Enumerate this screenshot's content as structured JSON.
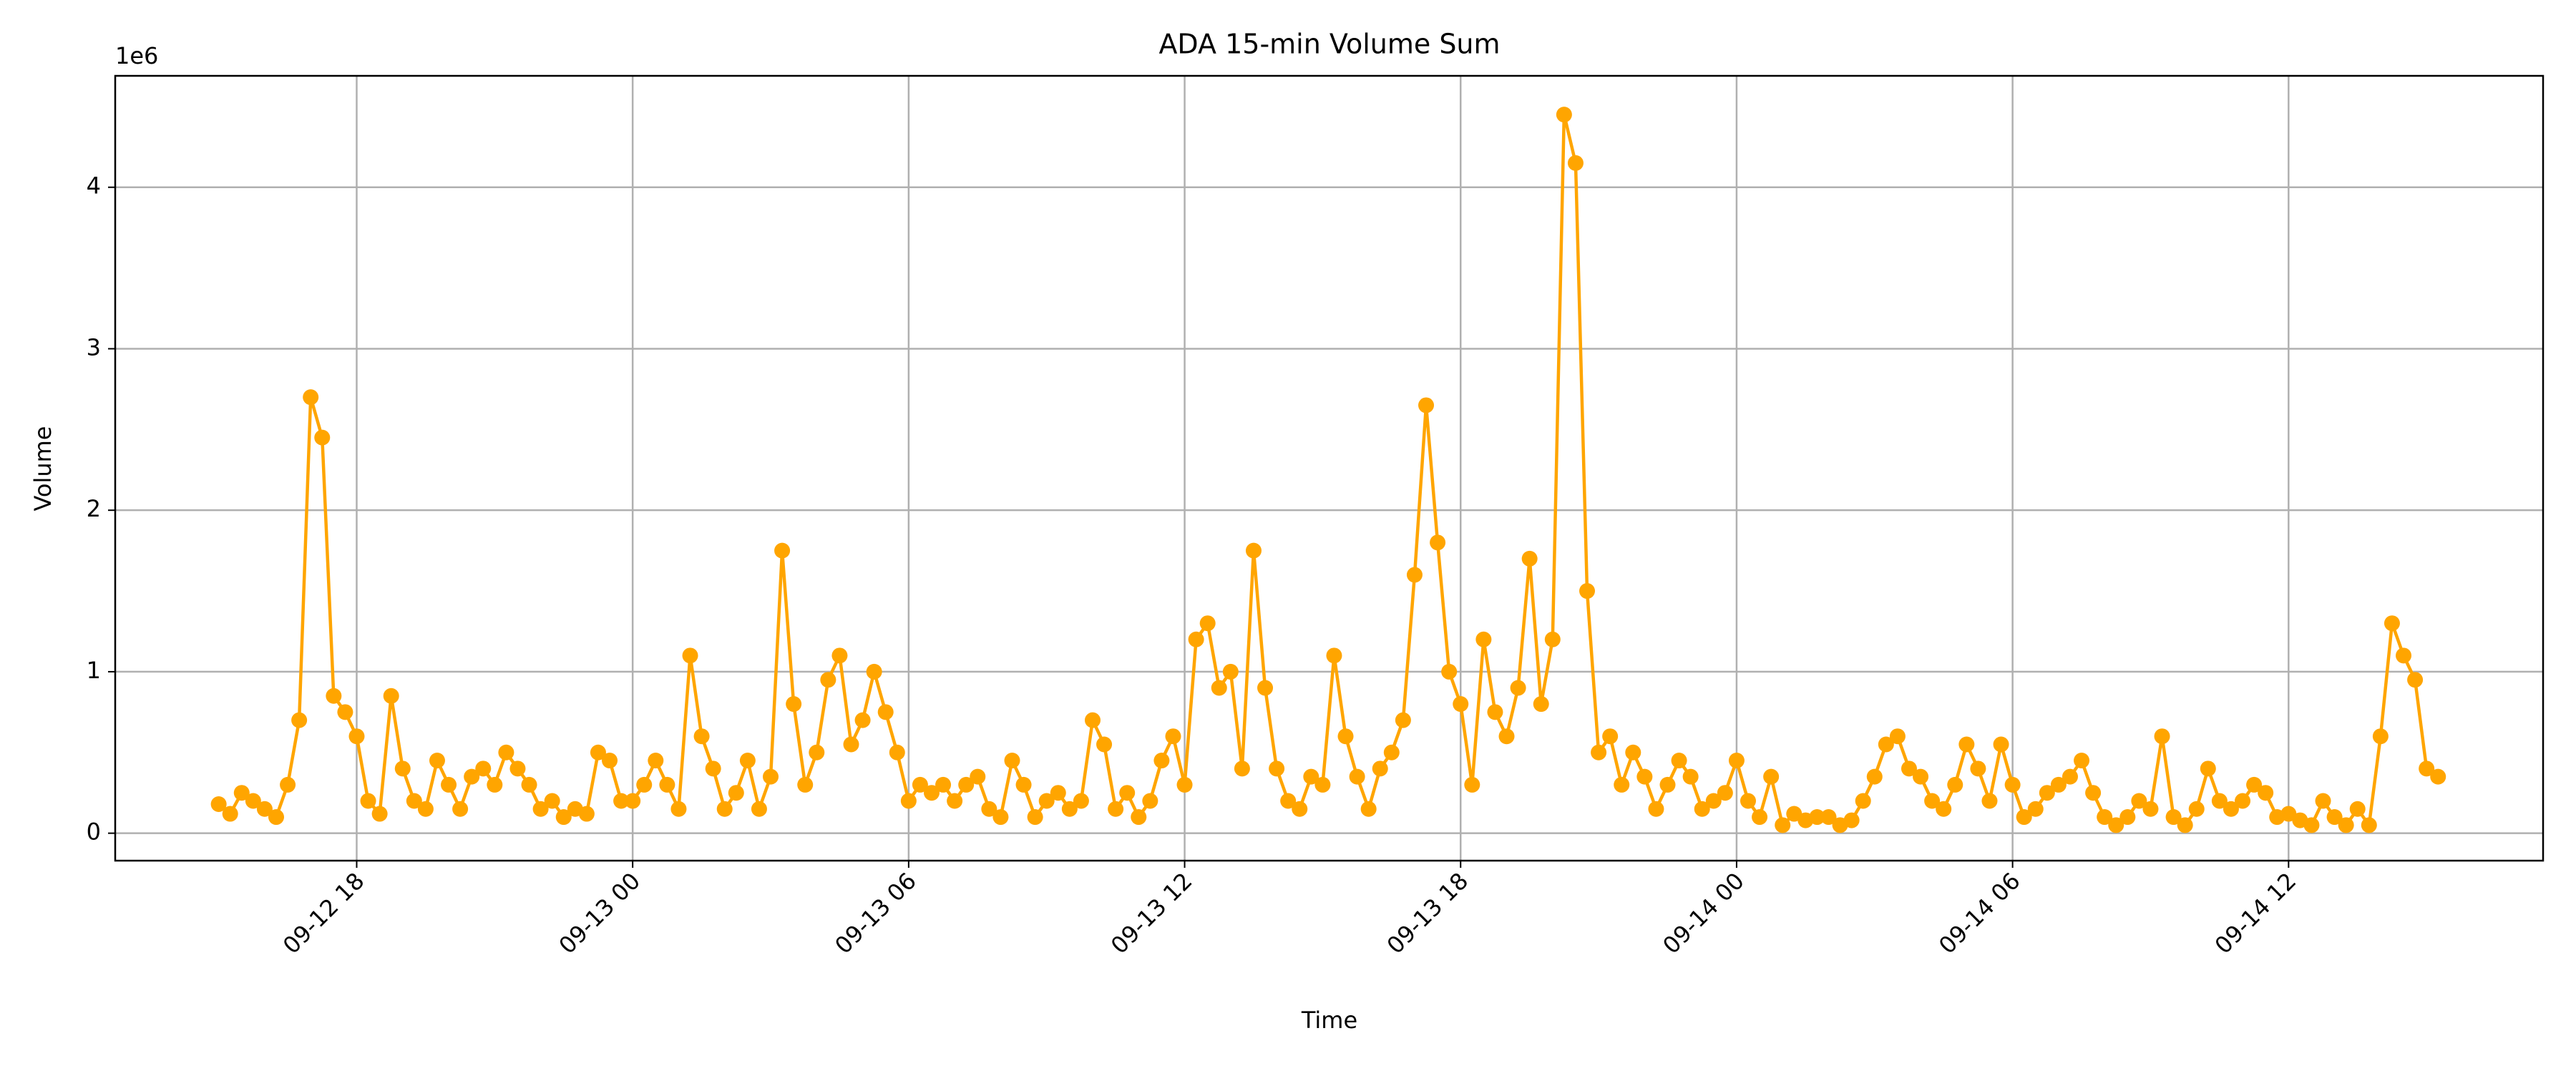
{
  "chart_data": {
    "type": "line",
    "title": "ADA 15-min Volume Sum",
    "x_label": "Time",
    "y_label": "Volume",
    "y_offset_label": "1e6",
    "x": [
      "09-12 15:00",
      "09-12 15:15",
      "09-12 15:30",
      "09-12 15:45",
      "09-12 16:00",
      "09-12 16:15",
      "09-12 16:30",
      "09-12 16:45",
      "09-12 17:00",
      "09-12 17:15",
      "09-12 17:30",
      "09-12 17:45",
      "09-12 18:00",
      "09-12 18:15",
      "09-12 18:30",
      "09-12 18:45",
      "09-12 19:00",
      "09-12 19:15",
      "09-12 19:30",
      "09-12 19:45",
      "09-12 20:00",
      "09-12 20:15",
      "09-12 20:30",
      "09-12 20:45",
      "09-12 21:00",
      "09-12 21:15",
      "09-12 21:30",
      "09-12 21:45",
      "09-12 22:00",
      "09-12 22:15",
      "09-12 22:30",
      "09-12 22:45",
      "09-12 23:00",
      "09-12 23:15",
      "09-12 23:30",
      "09-12 23:45",
      "09-13 00:00",
      "09-13 00:15",
      "09-13 00:30",
      "09-13 00:45",
      "09-13 01:00",
      "09-13 01:15",
      "09-13 01:30",
      "09-13 01:45",
      "09-13 02:00",
      "09-13 02:15",
      "09-13 02:30",
      "09-13 02:45",
      "09-13 03:00",
      "09-13 03:15",
      "09-13 03:30",
      "09-13 03:45",
      "09-13 04:00",
      "09-13 04:15",
      "09-13 04:30",
      "09-13 04:45",
      "09-13 05:00",
      "09-13 05:15",
      "09-13 05:30",
      "09-13 05:45",
      "09-13 06:00",
      "09-13 06:15",
      "09-13 06:30",
      "09-13 06:45",
      "09-13 07:00",
      "09-13 07:15",
      "09-13 07:30",
      "09-13 07:45",
      "09-13 08:00",
      "09-13 08:15",
      "09-13 08:30",
      "09-13 08:45",
      "09-13 09:00",
      "09-13 09:15",
      "09-13 09:30",
      "09-13 09:45",
      "09-13 10:00",
      "09-13 10:15",
      "09-13 10:30",
      "09-13 10:45",
      "09-13 11:00",
      "09-13 11:15",
      "09-13 11:30",
      "09-13 11:45",
      "09-13 12:00",
      "09-13 12:15",
      "09-13 12:30",
      "09-13 12:45",
      "09-13 13:00",
      "09-13 13:15",
      "09-13 13:30",
      "09-13 13:45",
      "09-13 14:00",
      "09-13 14:15",
      "09-13 14:30",
      "09-13 14:45",
      "09-13 15:00",
      "09-13 15:15",
      "09-13 15:30",
      "09-13 15:45",
      "09-13 16:00",
      "09-13 16:15",
      "09-13 16:30",
      "09-13 16:45",
      "09-13 17:00",
      "09-13 17:15",
      "09-13 17:30",
      "09-13 17:45",
      "09-13 18:00",
      "09-13 18:15",
      "09-13 18:30",
      "09-13 18:45",
      "09-13 19:00",
      "09-13 19:15",
      "09-13 19:30",
      "09-13 19:45",
      "09-13 20:00",
      "09-13 20:15",
      "09-13 20:30",
      "09-13 20:45",
      "09-13 21:00",
      "09-13 21:15",
      "09-13 21:30",
      "09-13 21:45",
      "09-13 22:00",
      "09-13 22:15",
      "09-13 22:30",
      "09-13 22:45",
      "09-13 23:00",
      "09-13 23:15",
      "09-13 23:30",
      "09-13 23:45",
      "09-14 00:00",
      "09-14 00:15",
      "09-14 00:30",
      "09-14 00:45",
      "09-14 01:00",
      "09-14 01:15",
      "09-14 01:30",
      "09-14 01:45",
      "09-14 02:00",
      "09-14 02:15",
      "09-14 02:30",
      "09-14 02:45",
      "09-14 03:00",
      "09-14 03:15",
      "09-14 03:30",
      "09-14 03:45",
      "09-14 04:00",
      "09-14 04:15",
      "09-14 04:30",
      "09-14 04:45",
      "09-14 05:00",
      "09-14 05:15",
      "09-14 05:30",
      "09-14 05:45",
      "09-14 06:00",
      "09-14 06:15",
      "09-14 06:30",
      "09-14 06:45",
      "09-14 07:00",
      "09-14 07:15",
      "09-14 07:30",
      "09-14 07:45",
      "09-14 08:00",
      "09-14 08:15",
      "09-14 08:30",
      "09-14 08:45",
      "09-14 09:00",
      "09-14 09:15",
      "09-14 09:30",
      "09-14 09:45",
      "09-14 10:00",
      "09-14 10:15",
      "09-14 10:30",
      "09-14 10:45",
      "09-14 11:00",
      "09-14 11:15",
      "09-14 11:30",
      "09-14 11:45",
      "09-14 12:00",
      "09-14 12:15",
      "09-14 12:30",
      "09-14 12:45",
      "09-14 13:00",
      "09-14 13:15",
      "09-14 13:30",
      "09-14 13:45",
      "09-14 14:00",
      "09-14 14:15",
      "09-14 14:30",
      "09-14 14:45",
      "09-14 15:00",
      "09-14 15:15"
    ],
    "series": [
      {
        "color": "#ffa500",
        "values": [
          180000,
          120000,
          250000,
          200000,
          150000,
          100000,
          300000,
          700000,
          2700000,
          2450000,
          850000,
          750000,
          600000,
          200000,
          120000,
          850000,
          400000,
          200000,
          150000,
          450000,
          300000,
          150000,
          350000,
          400000,
          300000,
          500000,
          400000,
          300000,
          150000,
          200000,
          100000,
          150000,
          120000,
          500000,
          450000,
          200000,
          200000,
          300000,
          450000,
          300000,
          150000,
          1100000,
          600000,
          400000,
          150000,
          250000,
          450000,
          150000,
          350000,
          1750000,
          800000,
          300000,
          500000,
          950000,
          1100000,
          550000,
          700000,
          1000000,
          750000,
          500000,
          200000,
          300000,
          250000,
          300000,
          200000,
          300000,
          350000,
          150000,
          100000,
          450000,
          300000,
          100000,
          200000,
          250000,
          150000,
          200000,
          700000,
          550000,
          150000,
          250000,
          100000,
          200000,
          450000,
          600000,
          300000,
          1200000,
          1300000,
          900000,
          1000000,
          400000,
          1750000,
          900000,
          400000,
          200000,
          150000,
          350000,
          300000,
          1100000,
          600000,
          350000,
          150000,
          400000,
          500000,
          700000,
          1600000,
          2650000,
          1800000,
          1000000,
          800000,
          300000,
          1200000,
          750000,
          600000,
          900000,
          1700000,
          800000,
          1200000,
          4450000,
          4150000,
          1500000,
          500000,
          600000,
          300000,
          500000,
          350000,
          150000,
          300000,
          450000,
          350000,
          150000,
          200000,
          250000,
          450000,
          200000,
          100000,
          350000,
          50000,
          120000,
          80000,
          100000,
          100000,
          50000,
          80000,
          200000,
          350000,
          550000,
          600000,
          400000,
          350000,
          200000,
          150000,
          300000,
          550000,
          400000,
          200000,
          550000,
          300000,
          100000,
          150000,
          250000,
          300000,
          350000,
          450000,
          250000,
          100000,
          50000,
          100000,
          200000,
          150000,
          600000,
          100000,
          50000,
          150000,
          400000,
          200000,
          150000,
          200000,
          300000,
          250000,
          100000,
          120000,
          80000,
          50000,
          200000,
          100000,
          50000,
          150000,
          50000,
          600000,
          1300000,
          1100000,
          950000,
          400000,
          350000
        ]
      }
    ],
    "xlim": [
      "09-12 12:45",
      "09-14 17:32"
    ],
    "xticks": [
      "09-12 18",
      "09-13 00",
      "09-13 06",
      "09-13 12",
      "09-13 18",
      "09-14 00",
      "09-14 06",
      "09-14 12"
    ],
    "ylim": [
      -170000,
      4690000
    ],
    "yticks": [
      {
        "value": 0,
        "label": "0"
      },
      {
        "value": 1000000,
        "label": "1"
      },
      {
        "value": 2000000,
        "label": "2"
      },
      {
        "value": 3000000,
        "label": "3"
      },
      {
        "value": 4000000,
        "label": "4"
      }
    ],
    "grid": true
  }
}
